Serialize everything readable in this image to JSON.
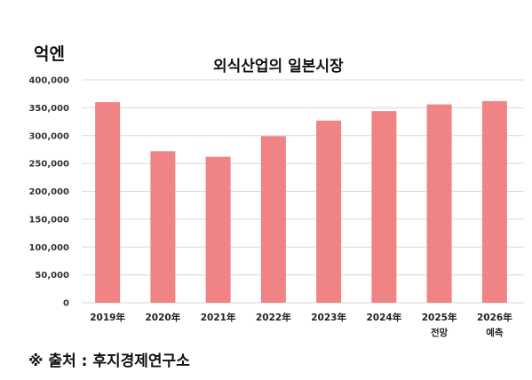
{
  "chart_data": {
    "type": "bar",
    "title": "외식산업의 일본시장",
    "ylabel": "억엔",
    "categories": [
      "2019年",
      "2020年",
      "2021年",
      "2022年",
      "2023年",
      "2024年",
      "2025年",
      "2026年"
    ],
    "category_notes": [
      "",
      "",
      "",
      "",
      "",
      "",
      "전망",
      "예측"
    ],
    "values": [
      360000,
      272000,
      262000,
      299000,
      327000,
      344000,
      356000,
      362000
    ],
    "yticks": [
      "0",
      "50,000",
      "100,000",
      "150,000",
      "200,000",
      "250,000",
      "300,000",
      "350,000",
      "400,000"
    ],
    "ylim": [
      0,
      400000
    ],
    "grid": true,
    "bar_color": "#f08383",
    "grid_color": "#d9d9d9"
  },
  "source": "※ 출처 : 후지경제연구소"
}
